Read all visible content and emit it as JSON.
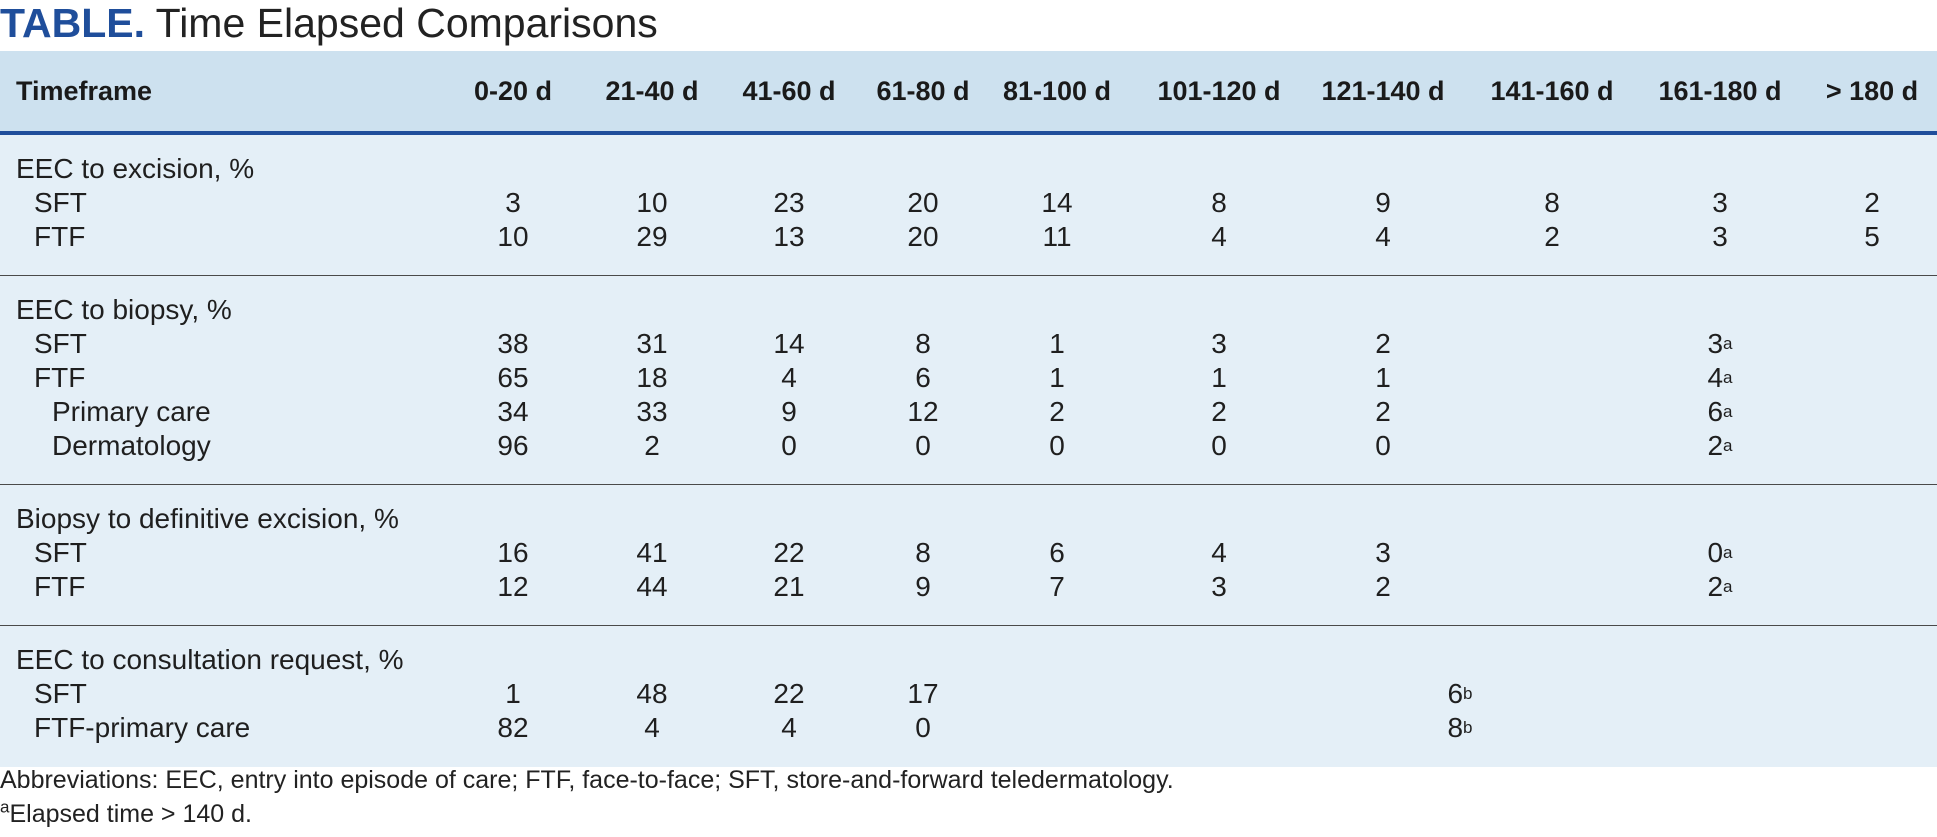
{
  "title": {
    "label": "TABLE.",
    "text": "Time Elapsed Comparisons"
  },
  "columns": [
    "Timeframe",
    "0-20 d",
    "21-40 d",
    "41-60 d",
    "61-80 d",
    "81-100 d",
    "101-120 d",
    "121-140 d",
    "141-160 d",
    "161-180 d",
    "> 180 d"
  ],
  "groups": [
    {
      "title": "EEC to excision, %",
      "rows": [
        {
          "label": "SFT",
          "values": [
            "3",
            "10",
            "23",
            "20",
            "14",
            "8",
            "9",
            "8",
            "3",
            "2"
          ]
        },
        {
          "label": "FTF",
          "values": [
            "10",
            "29",
            "13",
            "20",
            "11",
            "4",
            "4",
            "2",
            "3",
            "5"
          ]
        }
      ]
    },
    {
      "title": "EEC to biopsy, %",
      "rows": [
        {
          "label": "SFT",
          "values": [
            "38",
            "31",
            "14",
            "8",
            "1",
            "3",
            "2",
            "",
            "3",
            "",
            ""
          ],
          "sup": "a"
        },
        {
          "label": "FTF",
          "values": [
            "65",
            "18",
            "4",
            "6",
            "1",
            "1",
            "1",
            "",
            "4",
            "",
            ""
          ],
          "sup": "a"
        },
        {
          "label": "Primary care",
          "values": [
            "34",
            "33",
            "9",
            "12",
            "2",
            "2",
            "2",
            "",
            "6",
            "",
            ""
          ],
          "sup": "a"
        },
        {
          "label": "Dermatology",
          "values": [
            "96",
            "2",
            "0",
            "0",
            "0",
            "0",
            "0",
            "",
            "2",
            "",
            ""
          ],
          "sup": "a"
        }
      ]
    },
    {
      "title": "Biopsy to definitive excision, %",
      "rows": [
        {
          "label": "SFT",
          "values": [
            "16",
            "41",
            "22",
            "8",
            "6",
            "4",
            "3",
            "",
            "0",
            "",
            ""
          ],
          "sup": "a"
        },
        {
          "label": "FTF",
          "values": [
            "12",
            "44",
            "21",
            "9",
            "7",
            "3",
            "2",
            "",
            "2",
            "",
            ""
          ],
          "sup": "a"
        }
      ]
    },
    {
      "title": "EEC to consultation request, %",
      "rows": [
        {
          "label": "SFT",
          "values": [
            "1",
            "48",
            "22",
            "17",
            "",
            "",
            "6",
            "",
            "",
            "",
            ""
          ],
          "sup": "b"
        },
        {
          "label": "FTF-primary care",
          "values": [
            "82",
            "4",
            "4",
            "0",
            "",
            "",
            "8",
            "",
            "",
            "",
            ""
          ],
          "sup": "b"
        }
      ]
    }
  ],
  "footnotes": {
    "abbreviations": "Abbreviations: EEC, entry into episode of care; FTF, face-to-face; SFT, store-and-forward teledermatology.",
    "a_mark": "a",
    "a_text": "Elapsed time > 140 d."
  }
}
